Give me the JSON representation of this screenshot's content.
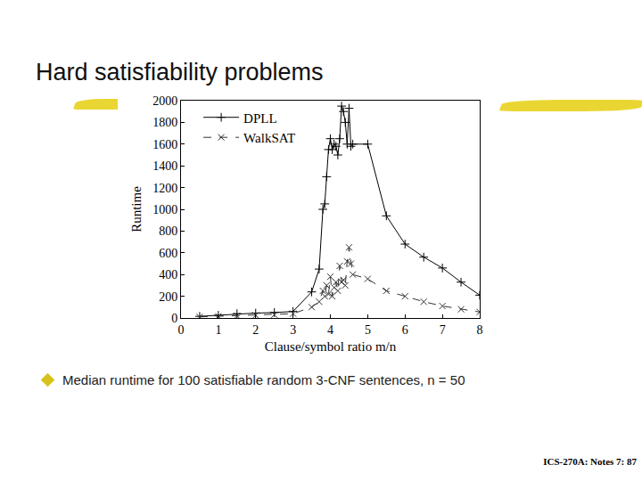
{
  "chart_data": {
    "type": "line",
    "title": "Hard satisfiability problems",
    "subtitle": "Median runtime for 100 satisfiable random 3-CNF sentences, n = 50",
    "annotations": [
      "ICS-270A: Notes 7: 87"
    ],
    "x_label": "Clause/symbol ratio m/n",
    "y_label": "Runtime",
    "xlim": [
      0,
      8
    ],
    "ylim": [
      0,
      2000
    ],
    "xticks": [
      0,
      1,
      2,
      3,
      4,
      5,
      6,
      7,
      8
    ],
    "yticks": [
      0,
      200,
      400,
      600,
      800,
      1000,
      1200,
      1400,
      1600,
      1800,
      2000
    ],
    "grid": false,
    "legend": "top left",
    "x": [
      0.5,
      1,
      1.5,
      2,
      2.5,
      3,
      3.5,
      3.7,
      3.8,
      3.85,
      3.9,
      3.95,
      4,
      4.05,
      4.1,
      4.15,
      4.2,
      4.25,
      4.3,
      4.35,
      4.4,
      4.45,
      4.5,
      4.55,
      4.6,
      5,
      5.5,
      6,
      6.5,
      7,
      7.5,
      8
    ],
    "series": [
      {
        "name": "DPLL",
        "color": "#000000",
        "marker": "cross",
        "line_style": "solid",
        "values": [
          15,
          25,
          40,
          45,
          50,
          60,
          240,
          450,
          1000,
          1050,
          1300,
          1550,
          1650,
          1550,
          1600,
          1580,
          1500,
          1650,
          1950,
          1900,
          1800,
          1600,
          1930,
          1580,
          1600,
          1600,
          940,
          680,
          560,
          460,
          330,
          210
        ]
      },
      {
        "name": "WalkSAT",
        "color": "#333333",
        "marker": "x",
        "line_style": "dashed",
        "values": [
          10,
          15,
          20,
          25,
          30,
          40,
          100,
          150,
          250,
          200,
          300,
          220,
          380,
          200,
          280,
          330,
          250,
          480,
          330,
          350,
          300,
          520,
          650,
          500,
          400,
          360,
          250,
          200,
          150,
          110,
          80,
          55
        ]
      }
    ]
  }
}
